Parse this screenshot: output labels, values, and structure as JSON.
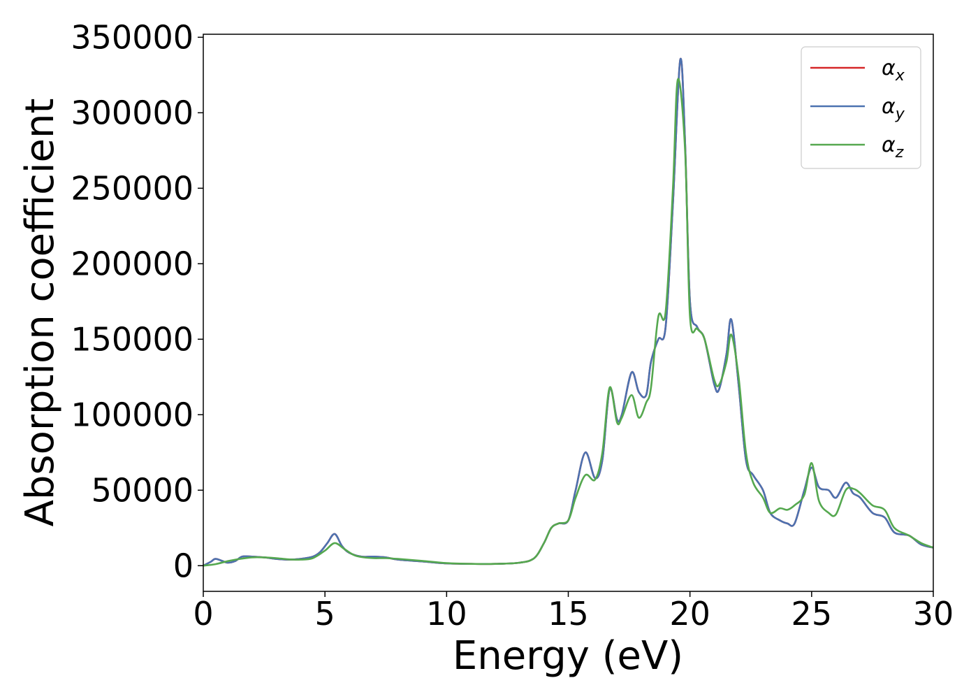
{
  "chart_data": {
    "type": "line",
    "title": "",
    "xlabel": "Energy (eV)",
    "ylabel": "Absorption coefficient",
    "xlim": [
      0,
      30
    ],
    "ylim": [
      -17000,
      352000
    ],
    "xticks": [
      0,
      5,
      10,
      15,
      20,
      25,
      30
    ],
    "yticks": [
      0,
      50000,
      100000,
      150000,
      200000,
      250000,
      300000,
      350000
    ],
    "grid": false,
    "legend_position": "top-right",
    "series": [
      {
        "name": "αx",
        "color": "#d62728",
        "x": [
          0,
          0.3,
          0.5,
          0.8,
          1.0,
          1.3,
          1.6,
          2.0,
          2.5,
          3.0,
          3.5,
          4.0,
          4.5,
          4.8,
          5.1,
          5.4,
          5.7,
          6.0,
          6.5,
          7.0,
          7.5,
          8.0,
          9.0,
          10.0,
          11.0,
          12.0,
          13.0,
          13.6,
          14.0,
          14.3,
          14.6,
          15.0,
          15.3,
          15.7,
          16.1,
          16.4,
          16.7,
          17.0,
          17.2,
          17.6,
          17.9,
          18.2,
          18.4,
          18.7,
          19.0,
          19.3,
          19.6,
          19.8,
          20.0,
          20.3,
          20.6,
          21.0,
          21.2,
          21.5,
          21.7,
          22.0,
          22.3,
          22.6,
          23.0,
          23.3,
          23.7,
          24.0,
          24.3,
          24.7,
          25.0,
          25.3,
          25.7,
          26.0,
          26.4,
          26.7,
          27.0,
          27.5,
          28.0,
          28.4,
          29.0,
          29.5,
          30.0
        ],
        "y": [
          0,
          2500,
          4500,
          3000,
          2000,
          3000,
          6000,
          6000,
          5500,
          4500,
          4000,
          4500,
          6000,
          9000,
          15000,
          21000,
          13000,
          8500,
          6000,
          6000,
          5500,
          4000,
          2800,
          1500,
          1200,
          1200,
          2000,
          5000,
          15000,
          25000,
          28000,
          30000,
          50000,
          75000,
          58000,
          70000,
          117000,
          97000,
          100000,
          128000,
          115000,
          113000,
          135000,
          150000,
          158000,
          240000,
          335000,
          280000,
          175000,
          158000,
          150000,
          120000,
          117000,
          140000,
          163000,
          120000,
          70000,
          60000,
          50000,
          35000,
          30000,
          28000,
          28000,
          50000,
          65000,
          52000,
          50000,
          45000,
          55000,
          48000,
          45000,
          35000,
          32000,
          22000,
          20000,
          14000,
          12000
        ]
      },
      {
        "name": "αy",
        "color": "#4c72b0",
        "x": [
          0,
          0.3,
          0.5,
          0.8,
          1.0,
          1.3,
          1.6,
          2.0,
          2.5,
          3.0,
          3.5,
          4.0,
          4.5,
          4.8,
          5.1,
          5.4,
          5.7,
          6.0,
          6.5,
          7.0,
          7.5,
          8.0,
          9.0,
          10.0,
          11.0,
          12.0,
          13.0,
          13.6,
          14.0,
          14.3,
          14.6,
          15.0,
          15.3,
          15.7,
          16.1,
          16.4,
          16.7,
          17.0,
          17.2,
          17.6,
          17.9,
          18.2,
          18.4,
          18.7,
          19.0,
          19.3,
          19.6,
          19.8,
          20.0,
          20.3,
          20.6,
          21.0,
          21.2,
          21.5,
          21.7,
          22.0,
          22.3,
          22.6,
          23.0,
          23.3,
          23.7,
          24.0,
          24.3,
          24.7,
          25.0,
          25.3,
          25.7,
          26.0,
          26.4,
          26.7,
          27.0,
          27.5,
          28.0,
          28.4,
          29.0,
          29.5,
          30.0
        ],
        "y": [
          0,
          2500,
          4500,
          3000,
          2000,
          3000,
          6000,
          6000,
          5500,
          4500,
          4000,
          4500,
          6000,
          9000,
          15000,
          21000,
          13000,
          8500,
          6000,
          6000,
          5500,
          4000,
          2800,
          1500,
          1200,
          1200,
          2000,
          5000,
          15000,
          25000,
          28000,
          30000,
          50000,
          75000,
          58000,
          70000,
          117000,
          97000,
          100000,
          128000,
          115000,
          113000,
          135000,
          150000,
          158000,
          240000,
          335000,
          280000,
          175000,
          158000,
          150000,
          120000,
          117000,
          140000,
          163000,
          120000,
          70000,
          60000,
          50000,
          35000,
          30000,
          28000,
          28000,
          50000,
          65000,
          52000,
          50000,
          45000,
          55000,
          48000,
          45000,
          35000,
          32000,
          22000,
          20000,
          14000,
          12000
        ]
      },
      {
        "name": "αz",
        "color": "#55a84f",
        "x": [
          0,
          0.5,
          1.0,
          1.5,
          2.0,
          2.5,
          3.0,
          3.5,
          4.0,
          4.5,
          5.0,
          5.4,
          5.8,
          6.2,
          6.6,
          7.0,
          7.5,
          8.0,
          9.0,
          10.0,
          11.0,
          12.0,
          13.0,
          13.6,
          14.0,
          14.3,
          14.6,
          15.0,
          15.3,
          15.7,
          16.1,
          16.4,
          16.7,
          17.0,
          17.2,
          17.6,
          17.9,
          18.2,
          18.4,
          18.7,
          19.0,
          19.3,
          19.5,
          19.8,
          20.0,
          20.3,
          20.6,
          21.0,
          21.2,
          21.5,
          21.7,
          22.0,
          22.3,
          22.6,
          23.0,
          23.3,
          23.7,
          24.0,
          24.3,
          24.7,
          25.0,
          25.3,
          25.7,
          26.0,
          26.4,
          26.7,
          27.0,
          27.5,
          28.0,
          28.4,
          29.0,
          29.5,
          30.0
        ],
        "y": [
          0,
          1000,
          3000,
          4500,
          5500,
          5500,
          5000,
          4200,
          4000,
          5000,
          10000,
          15000,
          11000,
          7000,
          5500,
          5000,
          5000,
          4500,
          3200,
          1700,
          1200,
          1200,
          2000,
          5000,
          15000,
          25000,
          28000,
          30000,
          45000,
          60000,
          57000,
          75000,
          118000,
          95000,
          98000,
          113000,
          98000,
          108000,
          118000,
          165000,
          168000,
          250000,
          322000,
          275000,
          165000,
          157000,
          150000,
          123000,
          120000,
          135000,
          153000,
          125000,
          75000,
          55000,
          45000,
          35000,
          38000,
          37000,
          40000,
          47000,
          68000,
          43000,
          35000,
          34000,
          50000,
          51000,
          48000,
          40000,
          37000,
          25000,
          20000,
          15000,
          12000
        ]
      }
    ]
  }
}
